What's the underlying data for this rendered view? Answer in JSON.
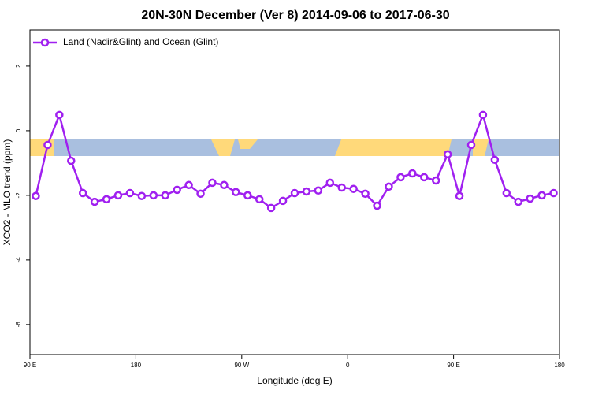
{
  "chart_data": {
    "type": "line",
    "title": "20N-30N December (Ver 8)   2014-09-06 to 2017-06-30",
    "x_label": "Longitude (deg E)",
    "y_label": "XCO2 - MLO trend (ppm)",
    "x": [
      95,
      105,
      115,
      125,
      135,
      145,
      155,
      165,
      175,
      185,
      195,
      205,
      215,
      225,
      235,
      245,
      255,
      265,
      275,
      285,
      295,
      305,
      315,
      325,
      335,
      345,
      355,
      365,
      375,
      385,
      395,
      405,
      415,
      425,
      435,
      445,
      455,
      465,
      475,
      485,
      495,
      505,
      515,
      525,
      535
    ],
    "series": [
      {
        "name": "Land (Nadir&Glint) and Ocean (Glint)",
        "color": "#a020f0",
        "values": [
          -2.02,
          -0.44,
          0.49,
          -0.93,
          -1.93,
          -2.2,
          -2.12,
          -2.0,
          -1.93,
          -2.02,
          -2.0,
          -2.0,
          -1.83,
          -1.68,
          -1.95,
          -1.61,
          -1.68,
          -1.9,
          -2.0,
          -2.12,
          -2.39,
          -2.17,
          -1.93,
          -1.88,
          -1.85,
          -1.61,
          -1.76,
          -1.8,
          -1.95,
          -2.32,
          -1.73,
          -1.44,
          -1.32,
          -1.44,
          -1.54,
          -0.73,
          -2.02,
          -0.44,
          0.49,
          -0.9,
          -1.93,
          -2.2,
          -2.1,
          -2.0,
          -1.93
        ]
      }
    ],
    "xlim": [
      90,
      540
    ],
    "xticks": [
      {
        "value": 90,
        "label": "90 E"
      },
      {
        "value": 180,
        "label": "180"
      },
      {
        "value": 270,
        "label": "90 W"
      },
      {
        "value": 360,
        "label": "0"
      },
      {
        "value": 450,
        "label": "90 E"
      },
      {
        "value": 540,
        "label": "180"
      }
    ],
    "ylim": [
      -6.93,
      3.12
    ],
    "yticks": [
      -6,
      -4,
      -2,
      0,
      2
    ],
    "legend": "top-left"
  }
}
